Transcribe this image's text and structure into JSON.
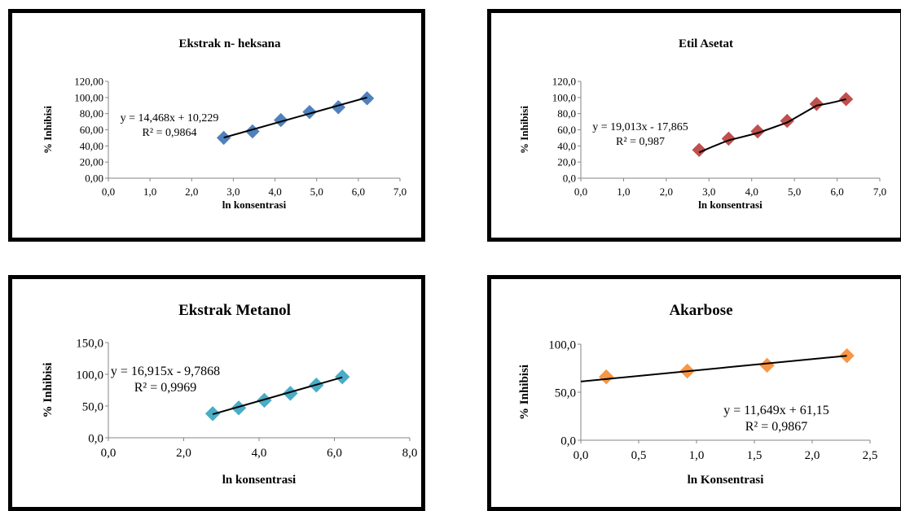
{
  "chart_data": [
    {
      "type": "scatter",
      "title": "Ekstrak n- heksana",
      "xlabel": "ln konsentrasi",
      "ylabel": "% Inhibisi",
      "xlim": [
        0,
        7
      ],
      "ylim": [
        0,
        120
      ],
      "x_ticks": [
        "0,0",
        "1,0",
        "2,0",
        "3,0",
        "4,0",
        "5,0",
        "6,0",
        "7,0"
      ],
      "y_ticks": [
        "0,00",
        "20,00",
        "40,00",
        "60,00",
        "80,00",
        "100,00",
        "120,00"
      ],
      "series": [
        {
          "x": [
            2.77,
            3.46,
            4.14,
            4.83,
            5.52,
            6.21
          ],
          "y": [
            50,
            58,
            72,
            82,
            88,
            99
          ],
          "color": "#4f81bd"
        }
      ],
      "trendline": {
        "slope": 14.468,
        "intercept": 10.229,
        "kind": "linear"
      },
      "equation": "y = 14,468x + 10,229",
      "r2": "R² = 0,9864",
      "grid": false,
      "legend": "none"
    },
    {
      "type": "scatter",
      "title": "Etil Asetat",
      "xlabel": "ln konsentrasi",
      "ylabel": "% Inhibisi",
      "xlim": [
        0,
        7
      ],
      "ylim": [
        0,
        120
      ],
      "x_ticks": [
        "0,0",
        "1,0",
        "2,0",
        "3,0",
        "4,0",
        "5,0",
        "6,0",
        "7,0"
      ],
      "y_ticks": [
        "0,0",
        "20,0",
        "40,0",
        "60,0",
        "80,0",
        "100,0",
        "120,0"
      ],
      "series": [
        {
          "x": [
            2.77,
            3.46,
            4.14,
            4.83,
            5.52,
            6.21
          ],
          "y": [
            35,
            49,
            58,
            71,
            92,
            98
          ],
          "color": "#c0504d"
        }
      ],
      "trendline": {
        "kind": "smooth"
      },
      "equation": "y = 19,013x - 17,865",
      "r2": "R² = 0,987",
      "grid": false,
      "legend": "none"
    },
    {
      "type": "scatter",
      "title": "Ekstrak Metanol",
      "xlabel": "ln konsentrasi",
      "ylabel": "% Inhibisi",
      "xlim": [
        0,
        8
      ],
      "ylim": [
        0,
        150
      ],
      "x_ticks": [
        "0,0",
        "2,0",
        "4,0",
        "6,0",
        "8,0"
      ],
      "y_ticks": [
        "0,0",
        "50,0",
        "100,0",
        "150,0"
      ],
      "series": [
        {
          "x": [
            2.77,
            3.46,
            4.14,
            4.83,
            5.52,
            6.21
          ],
          "y": [
            38,
            47,
            59,
            70,
            83,
            96
          ],
          "color": "#4bacc6"
        }
      ],
      "trendline": {
        "slope": 16.915,
        "intercept": -9.7868,
        "kind": "linear"
      },
      "equation": "y = 16,915x - 9,7868",
      "r2": "R² = 0,9969",
      "grid": false,
      "legend": "none"
    },
    {
      "type": "scatter",
      "title": "Akarbose",
      "xlabel": "ln Konsentrasi",
      "ylabel": "% Inhibisi",
      "xlim": [
        0,
        2.5
      ],
      "ylim": [
        0,
        100
      ],
      "x_ticks": [
        "0,0",
        "0,5",
        "1,0",
        "1,5",
        "2,0",
        "2,5"
      ],
      "y_ticks": [
        "0,0",
        "50,0",
        "100,0"
      ],
      "series": [
        {
          "x": [
            0.22,
            0.92,
            1.61,
            2.3
          ],
          "y": [
            66,
            72,
            78,
            88
          ],
          "color": "#f79646"
        }
      ],
      "trendline": {
        "slope": 11.649,
        "intercept": 61.15,
        "kind": "linear"
      },
      "equation": "y = 11,649x + 61,15",
      "r2": "R² = 0,9867",
      "grid": false,
      "legend": "none"
    }
  ]
}
